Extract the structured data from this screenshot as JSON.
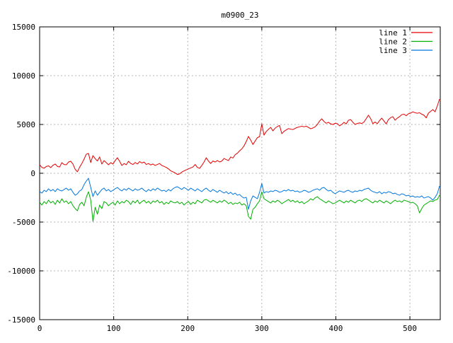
{
  "title": "m0900_23",
  "colors": {
    "line1": "#e60000",
    "line2": "#00b000",
    "line3": "#0076dd",
    "grid": "#b4b4b4",
    "border": "#000000",
    "text": "#000000",
    "background": "#ffffff"
  },
  "chart_data": {
    "type": "line",
    "title": "m0900_23",
    "xlabel": "",
    "ylabel": "",
    "xlim": [
      0,
      541
    ],
    "ylim": [
      -15000,
      15000
    ],
    "x_ticks": [
      0,
      100,
      200,
      300,
      400,
      500
    ],
    "y_ticks": [
      -15000,
      -10000,
      -5000,
      0,
      5000,
      10000,
      15000
    ],
    "grid": true,
    "legend_position": "top-right",
    "x_start": 0,
    "x_step": 3,
    "series": [
      {
        "name": "line 1",
        "color_key": "line1",
        "values": [
          870,
          600,
          520,
          700,
          760,
          580,
          820,
          950,
          700,
          640,
          1090,
          900,
          870,
          1150,
          1230,
          940,
          400,
          150,
          620,
          1000,
          1450,
          1950,
          2030,
          1100,
          1810,
          1500,
          1260,
          1670,
          940,
          1300,
          1090,
          870,
          1090,
          940,
          1300,
          1590,
          1230,
          800,
          1000,
          870,
          1230,
          1000,
          900,
          1100,
          950,
          1200,
          1050,
          1150,
          900,
          1000,
          850,
          950,
          800,
          900,
          1000,
          800,
          700,
          600,
          450,
          250,
          150,
          40,
          -120,
          -60,
          120,
          250,
          350,
          450,
          550,
          650,
          900,
          600,
          500,
          800,
          1150,
          1590,
          1250,
          1000,
          1260,
          1150,
          1300,
          1160,
          1250,
          1520,
          1400,
          1300,
          1670,
          1560,
          1900,
          2050,
          2300,
          2500,
          2800,
          3250,
          3780,
          3400,
          2950,
          3300,
          3650,
          3750,
          5070,
          3900,
          4280,
          4500,
          4700,
          4340,
          4620,
          4790,
          4900,
          4060,
          4300,
          4440,
          4580,
          4520,
          4480,
          4600,
          4700,
          4760,
          4820,
          4760,
          4820,
          4700,
          4560,
          4640,
          4760,
          5000,
          5350,
          5580,
          5300,
          5120,
          5220,
          5060,
          5000,
          5120,
          5080,
          4860,
          5000,
          5220,
          5060,
          5430,
          5500,
          5220,
          5000,
          5100,
          5160,
          5100,
          5250,
          5600,
          5950,
          5600,
          5080,
          5250,
          5080,
          5400,
          5650,
          5350,
          5060,
          5500,
          5700,
          5800,
          5440,
          5650,
          5800,
          6010,
          6050,
          5900,
          6100,
          6160,
          6300,
          6200,
          6150,
          6200,
          6050,
          5950,
          5680,
          6150,
          6350,
          6520,
          6300,
          6900,
          7600
        ]
      },
      {
        "name": "line 2",
        "color_key": "line2",
        "values": [
          -2970,
          -3260,
          -2900,
          -3120,
          -2750,
          -3040,
          -2870,
          -3190,
          -2760,
          -3050,
          -2610,
          -2970,
          -2830,
          -3120,
          -2900,
          -3330,
          -3620,
          -3840,
          -3190,
          -2970,
          -3330,
          -2460,
          -1890,
          -2750,
          -4930,
          -3480,
          -4200,
          -3260,
          -3620,
          -2900,
          -3040,
          -3330,
          -3120,
          -2970,
          -3260,
          -2830,
          -3120,
          -2900,
          -3040,
          -2760,
          -2900,
          -3190,
          -2830,
          -3040,
          -2750,
          -3120,
          -2900,
          -2760,
          -3040,
          -2870,
          -3120,
          -2830,
          -2970,
          -2760,
          -3040,
          -2900,
          -3190,
          -2970,
          -3120,
          -2830,
          -2970,
          -3040,
          -2900,
          -3120,
          -2970,
          -3260,
          -3040,
          -2900,
          -3190,
          -2970,
          -3120,
          -2760,
          -2900,
          -3040,
          -2750,
          -2680,
          -2830,
          -2970,
          -2760,
          -2900,
          -3040,
          -2830,
          -2970,
          -2750,
          -2900,
          -3120,
          -2970,
          -3190,
          -3040,
          -3120,
          -2970,
          -3260,
          -3120,
          -3330,
          -4420,
          -4710,
          -3700,
          -3480,
          -3120,
          -2830,
          -1890,
          -2610,
          -2760,
          -2900,
          -3040,
          -2830,
          -2970,
          -2760,
          -2900,
          -3120,
          -2970,
          -2830,
          -2680,
          -2900,
          -2760,
          -2970,
          -2830,
          -3040,
          -2900,
          -3120,
          -2970,
          -2830,
          -2610,
          -2750,
          -2530,
          -2400,
          -2610,
          -2750,
          -2900,
          -3040,
          -2830,
          -2970,
          -3120,
          -3040,
          -2900,
          -2760,
          -2900,
          -3040,
          -2830,
          -2970,
          -2760,
          -2900,
          -3040,
          -2830,
          -2750,
          -2900,
          -2680,
          -2610,
          -2750,
          -2900,
          -3040,
          -2830,
          -2970,
          -2760,
          -2900,
          -3040,
          -2830,
          -2970,
          -3120,
          -2900,
          -2760,
          -2900,
          -2830,
          -2970,
          -2750,
          -2830,
          -2900,
          -3040,
          -2970,
          -3120,
          -3330,
          -4060,
          -3620,
          -3260,
          -3120,
          -2970,
          -2830,
          -2900,
          -2750,
          -2680,
          -2250
        ]
      },
      {
        "name": "line 3",
        "color_key": "line3",
        "values": [
          -1880,
          -2030,
          -1740,
          -1880,
          -1590,
          -1810,
          -1660,
          -1880,
          -1590,
          -1740,
          -1810,
          -1660,
          -1520,
          -1740,
          -1590,
          -1950,
          -2250,
          -2100,
          -1810,
          -1660,
          -1160,
          -800,
          -510,
          -1450,
          -2390,
          -1810,
          -2250,
          -1950,
          -1660,
          -1520,
          -1810,
          -1660,
          -1880,
          -1740,
          -1590,
          -1450,
          -1660,
          -1810,
          -1590,
          -1740,
          -1520,
          -1660,
          -1810,
          -1590,
          -1740,
          -1660,
          -1520,
          -1740,
          -1880,
          -1660,
          -1810,
          -1590,
          -1740,
          -1520,
          -1660,
          -1810,
          -1740,
          -1880,
          -1660,
          -1810,
          -1590,
          -1450,
          -1380,
          -1520,
          -1660,
          -1450,
          -1590,
          -1740,
          -1520,
          -1660,
          -1810,
          -1590,
          -1740,
          -1880,
          -1660,
          -1520,
          -1740,
          -1880,
          -1660,
          -1810,
          -1950,
          -1740,
          -1880,
          -2030,
          -1880,
          -2100,
          -1950,
          -2170,
          -2030,
          -2250,
          -2170,
          -2390,
          -2540,
          -2460,
          -3700,
          -2830,
          -2320,
          -2460,
          -2610,
          -1950,
          -1050,
          -2030,
          -1880,
          -1950,
          -1810,
          -1880,
          -1740,
          -1810,
          -1950,
          -1880,
          -1740,
          -1810,
          -1660,
          -1810,
          -1740,
          -1880,
          -1810,
          -1950,
          -1880,
          -1740,
          -1810,
          -1950,
          -1880,
          -1740,
          -1660,
          -1590,
          -1740,
          -1520,
          -1450,
          -1660,
          -1810,
          -1740,
          -1950,
          -2100,
          -1950,
          -1810,
          -1880,
          -1950,
          -1810,
          -1740,
          -1880,
          -1950,
          -1810,
          -1880,
          -1740,
          -1810,
          -1660,
          -1590,
          -1520,
          -1740,
          -1880,
          -1950,
          -2030,
          -1880,
          -2100,
          -1950,
          -2030,
          -1880,
          -1950,
          -2100,
          -2030,
          -2170,
          -2250,
          -2100,
          -2170,
          -2320,
          -2250,
          -2390,
          -2320,
          -2460,
          -2390,
          -2460,
          -2320,
          -2540,
          -2460,
          -2390,
          -2540,
          -2750,
          -2460,
          -2100,
          -1300
        ]
      }
    ]
  }
}
